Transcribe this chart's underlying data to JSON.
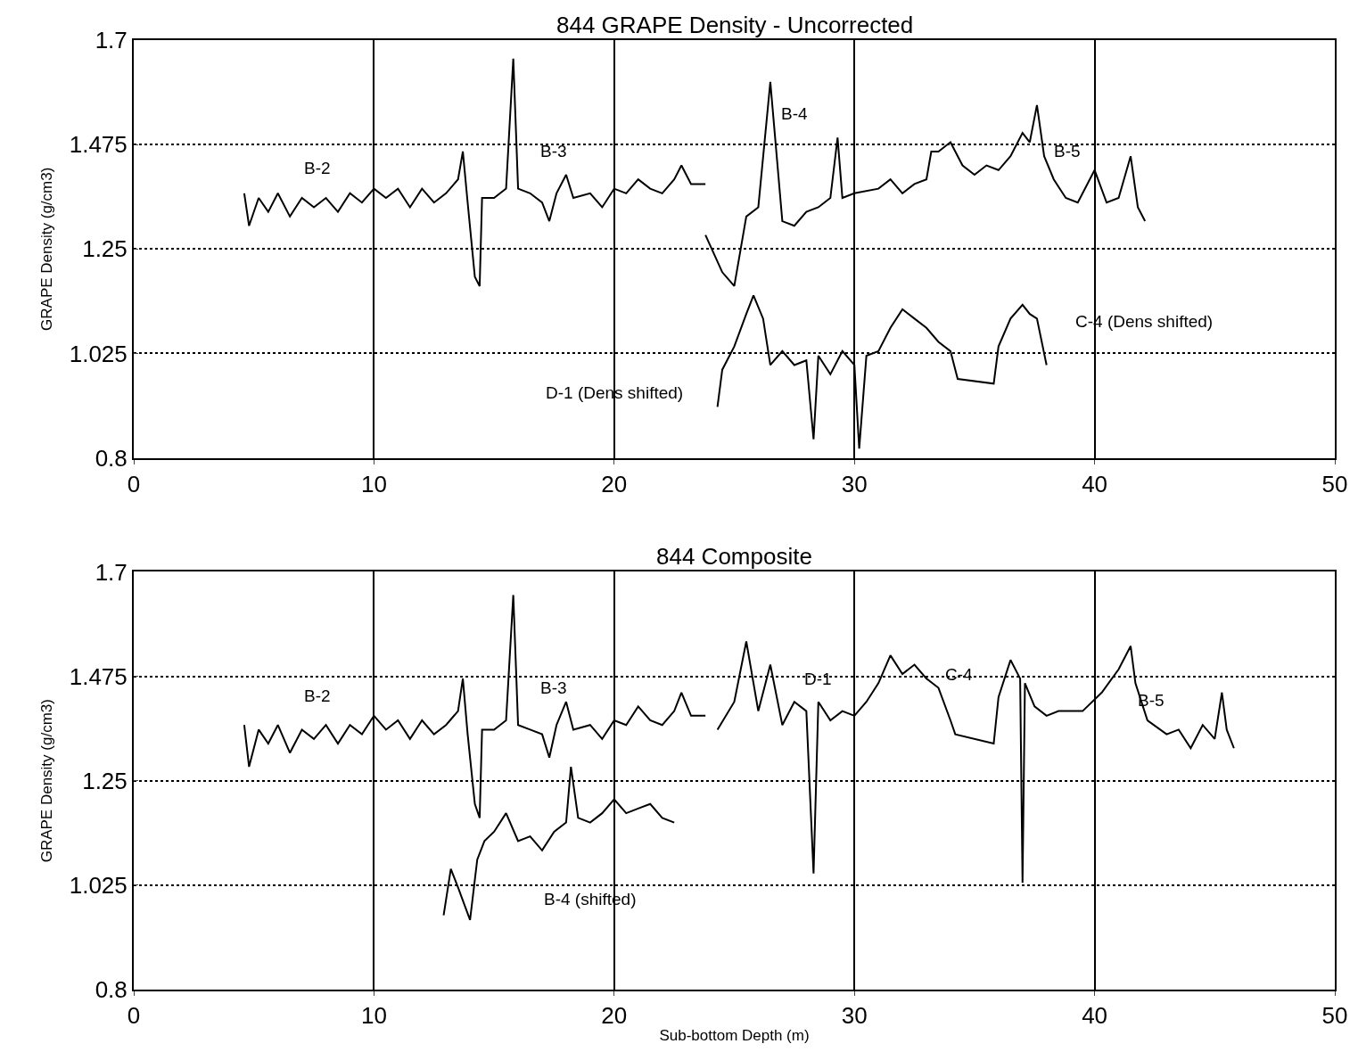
{
  "chart_data": [
    {
      "type": "line",
      "title": "844 GRAPE Density - Uncorrected",
      "ylabel": "GRAPE Density (g/cm3)",
      "xlim": [
        0,
        50
      ],
      "xticks": [
        0,
        10,
        20,
        30,
        40,
        50
      ],
      "ylim": [
        0.8,
        1.7
      ],
      "yticks": [
        0.8,
        1.025,
        1.25,
        1.475,
        1.7
      ],
      "grid": true,
      "series": [
        {
          "color": "#000000",
          "x": [
            4.6,
            4.8,
            5.2,
            5.6,
            6.0,
            6.5,
            7.0,
            7.5,
            8.0,
            8.5,
            9.0,
            9.5,
            10.0,
            10.5,
            11.0,
            11.5,
            12.0,
            12.5,
            13.0,
            13.5,
            13.7,
            13.9,
            14.2,
            14.4,
            14.5,
            15.0,
            15.5,
            15.8,
            16.0,
            16.5,
            17.0,
            17.3,
            17.6,
            18.0,
            18.3,
            19.0,
            19.5,
            20.0,
            20.5,
            21.0,
            21.5,
            22.0,
            22.5,
            22.8,
            23.2,
            23.8
          ],
          "values": [
            1.37,
            1.3,
            1.36,
            1.33,
            1.37,
            1.32,
            1.36,
            1.34,
            1.36,
            1.33,
            1.37,
            1.35,
            1.38,
            1.36,
            1.38,
            1.34,
            1.38,
            1.35,
            1.37,
            1.4,
            1.46,
            1.35,
            1.19,
            1.17,
            1.36,
            1.36,
            1.38,
            1.66,
            1.38,
            1.37,
            1.35,
            1.31,
            1.37,
            1.41,
            1.36,
            1.37,
            1.34,
            1.38,
            1.37,
            1.4,
            1.38,
            1.37,
            1.4,
            1.43,
            1.39,
            1.39
          ]
        },
        {
          "color": "#000000",
          "x": [
            23.8,
            24.5,
            25.0,
            25.5,
            26.0,
            26.5,
            27.0,
            27.5,
            28.0,
            28.5,
            29.0,
            29.3,
            29.5,
            30.0,
            31.0,
            31.5,
            32.0,
            32.5,
            33.0,
            33.2,
            33.5,
            34.0,
            34.5,
            35.0,
            35.5,
            36.0,
            36.5,
            37.0,
            37.3,
            37.6,
            37.9,
            38.3,
            38.8,
            39.3,
            40.0,
            40.5,
            41.0,
            41.5,
            41.8,
            42.1
          ],
          "values": [
            1.28,
            1.2,
            1.17,
            1.32,
            1.34,
            1.61,
            1.31,
            1.3,
            1.33,
            1.34,
            1.36,
            1.49,
            1.36,
            1.37,
            1.38,
            1.4,
            1.37,
            1.39,
            1.4,
            1.46,
            1.46,
            1.48,
            1.43,
            1.41,
            1.43,
            1.42,
            1.45,
            1.5,
            1.48,
            1.56,
            1.45,
            1.4,
            1.36,
            1.35,
            1.42,
            1.35,
            1.36,
            1.45,
            1.34,
            1.31
          ]
        },
        {
          "color": "#000000",
          "x": [
            24.3,
            24.5,
            25.0,
            25.5,
            25.8,
            26.2,
            26.5,
            27.0,
            27.5,
            28.0,
            28.3,
            28.5,
            29.0,
            29.5,
            30.0,
            30.2,
            30.5,
            31.0,
            31.5,
            32.0,
            32.5,
            33.0,
            33.5,
            34.0,
            34.3,
            35.8,
            36.0,
            36.5,
            37.0,
            37.3,
            37.6,
            38.0
          ],
          "values": [
            0.91,
            0.99,
            1.04,
            1.11,
            1.15,
            1.1,
            1.0,
            1.03,
            1.0,
            1.01,
            0.84,
            1.02,
            0.98,
            1.03,
            1.0,
            0.82,
            1.02,
            1.03,
            1.08,
            1.12,
            1.1,
            1.08,
            1.05,
            1.03,
            0.97,
            0.96,
            1.04,
            1.1,
            1.13,
            1.11,
            1.1,
            1.0
          ]
        }
      ],
      "annotations": [
        "B-2",
        "B-3",
        "B-4",
        "B-5",
        "C-4 (Dens shifted)",
        "D-1 (Dens shifted)"
      ]
    },
    {
      "type": "line",
      "title": "844 Composite",
      "xlabel": "Sub-bottom Depth (m)",
      "ylabel": "GRAPE Density (g/cm3)",
      "xlim": [
        0,
        50
      ],
      "xticks": [
        0,
        10,
        20,
        30,
        40,
        50
      ],
      "ylim": [
        0.8,
        1.7
      ],
      "yticks": [
        0.8,
        1.025,
        1.25,
        1.475,
        1.7
      ],
      "grid": true,
      "series": [
        {
          "color": "#000000",
          "x": [
            4.6,
            4.8,
            5.2,
            5.6,
            6.0,
            6.5,
            7.0,
            7.5,
            8.0,
            8.5,
            9.0,
            9.5,
            10.0,
            10.5,
            11.0,
            11.5,
            12.0,
            12.5,
            13.0,
            13.5,
            13.7,
            13.9,
            14.2,
            14.4,
            14.5,
            15.0,
            15.5,
            15.8,
            16.0,
            16.5,
            17.0,
            17.3,
            17.6,
            18.0,
            18.3,
            19.0,
            19.5,
            20.0,
            20.5,
            21.0,
            21.5,
            22.0,
            22.5,
            22.8,
            23.2,
            23.8
          ],
          "values": [
            1.37,
            1.28,
            1.36,
            1.33,
            1.37,
            1.31,
            1.36,
            1.34,
            1.37,
            1.33,
            1.37,
            1.35,
            1.39,
            1.36,
            1.38,
            1.34,
            1.38,
            1.35,
            1.37,
            1.4,
            1.47,
            1.35,
            1.2,
            1.17,
            1.36,
            1.36,
            1.38,
            1.65,
            1.37,
            1.36,
            1.35,
            1.3,
            1.37,
            1.42,
            1.36,
            1.37,
            1.34,
            1.38,
            1.37,
            1.41,
            1.38,
            1.37,
            1.4,
            1.44,
            1.39,
            1.39
          ]
        },
        {
          "color": "#000000",
          "x": [
            24.3,
            25.0,
            25.5,
            26.0,
            26.5,
            27.0,
            27.5,
            28.0,
            28.3,
            28.5,
            29.0,
            29.5,
            30.0,
            30.5,
            31.0,
            31.5,
            32.0,
            32.5,
            33.0,
            33.5,
            34.0,
            34.2,
            35.8,
            36.0,
            36.5,
            36.9,
            37.0,
            37.1,
            37.5,
            38.0,
            38.5,
            39.5,
            40.3,
            41.0,
            41.5,
            41.7,
            42.2,
            43.0,
            43.5,
            44.0,
            44.5,
            45.0,
            45.3,
            45.5,
            45.8
          ],
          "values": [
            1.36,
            1.42,
            1.55,
            1.4,
            1.5,
            1.37,
            1.42,
            1.4,
            1.05,
            1.42,
            1.38,
            1.4,
            1.39,
            1.42,
            1.46,
            1.52,
            1.48,
            1.5,
            1.47,
            1.45,
            1.38,
            1.35,
            1.33,
            1.43,
            1.51,
            1.47,
            1.03,
            1.46,
            1.41,
            1.39,
            1.4,
            1.4,
            1.44,
            1.49,
            1.54,
            1.46,
            1.38,
            1.35,
            1.36,
            1.32,
            1.37,
            1.34,
            1.44,
            1.36,
            1.32
          ]
        },
        {
          "color": "#000000",
          "x": [
            12.9,
            13.2,
            13.5,
            14.0,
            14.3,
            14.6,
            15.0,
            15.5,
            16.0,
            16.5,
            17.0,
            17.5,
            18.0,
            18.2,
            18.5,
            19.0,
            19.5,
            20.0,
            20.5,
            21.0,
            21.5,
            22.0,
            22.5
          ],
          "values": [
            0.96,
            1.06,
            1.02,
            0.95,
            1.08,
            1.12,
            1.14,
            1.18,
            1.12,
            1.13,
            1.1,
            1.14,
            1.16,
            1.28,
            1.17,
            1.16,
            1.18,
            1.21,
            1.18,
            1.19,
            1.2,
            1.17,
            1.16
          ]
        }
      ],
      "annotations": [
        "B-2",
        "B-3",
        "D-1",
        "C-4",
        "B-5",
        "B-4 (shifted)"
      ]
    }
  ]
}
